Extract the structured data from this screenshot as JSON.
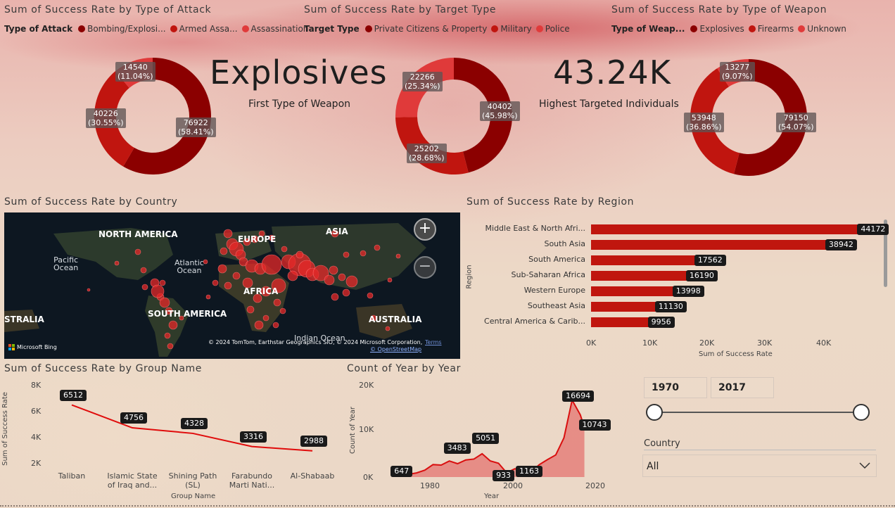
{
  "attack_panel": {
    "title": "Sum of Success Rate by Type of Attack",
    "legend_title": "Type of Attack",
    "legend": [
      {
        "label": "Bombing/Explosi...",
        "color": "#8b0000"
      },
      {
        "label": "Armed Assa...",
        "color": "#c0150f"
      },
      {
        "label": "Assassination",
        "color": "#e03a3a"
      }
    ],
    "labels": [
      "14540\n(11.04%)",
      "40226\n(30.55%)",
      "76922\n(58.41%)"
    ]
  },
  "target_panel": {
    "title": "Sum of Success Rate by Target Type",
    "legend_title": "Target Type",
    "legend": [
      {
        "label": "Private Citizens & Property",
        "color": "#8b0000"
      },
      {
        "label": "Military",
        "color": "#c0150f"
      },
      {
        "label": "Police",
        "color": "#e03a3a"
      }
    ],
    "labels": [
      "22266\n(25.34%)",
      "40402\n(45.98%)",
      "25202\n(28.68%)"
    ]
  },
  "weapon_panel": {
    "title": "Sum of Success Rate by Type of Weapon",
    "legend_title": "Type of Weap...",
    "legend": [
      {
        "label": "Explosives",
        "color": "#8b0000"
      },
      {
        "label": "Firearms",
        "color": "#c0150f"
      },
      {
        "label": "Unknown",
        "color": "#e03a3a"
      }
    ],
    "labels": [
      "13277\n(9.07%)",
      "53948\n(36.86%)",
      "79150\n(54.07%)"
    ]
  },
  "kpi_weapon": {
    "value": "Explosives",
    "caption": "First Type of Weapon"
  },
  "kpi_targeted": {
    "value": "43.24K",
    "caption": "Highest Targeted Individuals"
  },
  "country_panel": {
    "title": "Sum of Success Rate by Country",
    "continents": [
      "NORTH AMERICA",
      "EUROPE",
      "ASIA",
      "AFRICA",
      "SOUTH AMERICA",
      "AUSTRALIA",
      "STRALIA"
    ],
    "oceans": [
      "Pacific\nOcean",
      "Atlantic\nOcean",
      "Indian Ocean"
    ],
    "zoom_in": "+",
    "zoom_out": "−",
    "bing": "Microsoft Bing",
    "copyright": "© 2024 TomTom, Earthstar Geographics SIO, © 2024 Microsoft Corporation,",
    "terms": "Terms",
    "osm": "© OpenStreetMap"
  },
  "region_panel": {
    "title": "Sum of Success Rate by Region",
    "yaxis_label": "Region",
    "xaxis_label": "Sum of Success Rate",
    "ticks": [
      "0K",
      "10K",
      "20K",
      "30K",
      "40K"
    ],
    "value_tags": [
      "44172",
      "38942",
      "17562",
      "16190",
      "13998",
      "11130",
      "9956"
    ]
  },
  "group_panel": {
    "title": "Sum of Success Rate by Group Name",
    "yaxis_label": "Sum of Success Rate",
    "xaxis_label": "Group Name",
    "yticks": [
      "8K",
      "6K",
      "4K",
      "2K"
    ],
    "categories": [
      "Taliban",
      "Islamic State\nof Iraq and...",
      "Shining Path\n(SL)",
      "Farabundo\nMarti Nati...",
      "Al-Shabaab"
    ],
    "value_tags": [
      "6512",
      "4756",
      "4328",
      "3316",
      "2988"
    ]
  },
  "year_panel": {
    "title": "Count of Year by Year",
    "yaxis_label": "Count of Year",
    "xaxis_label": "Year",
    "yticks": [
      "20K",
      "10K",
      "0K"
    ],
    "xticks": [
      "1980",
      "2000",
      "2020"
    ],
    "value_tags": [
      "647",
      "3483",
      "5051",
      "933",
      "1163",
      "16694",
      "10743"
    ]
  },
  "slicer": {
    "start_year": "1970",
    "end_year": "2017",
    "country_label": "Country",
    "country_value": "All"
  },
  "chart_data": [
    {
      "type": "pie",
      "title": "Sum of Success Rate by Type of Attack",
      "categories": [
        "Bombing/Explosion",
        "Armed Assault",
        "Assassination"
      ],
      "values": [
        76922,
        40226,
        14540
      ],
      "percent": [
        58.41,
        30.55,
        11.04
      ]
    },
    {
      "type": "pie",
      "title": "Sum of Success Rate by Target Type",
      "categories": [
        "Private Citizens & Property",
        "Military",
        "Police"
      ],
      "values": [
        40402,
        25202,
        22266
      ],
      "percent": [
        45.98,
        28.68,
        25.34
      ]
    },
    {
      "type": "pie",
      "title": "Sum of Success Rate by Type of Weapon",
      "categories": [
        "Explosives",
        "Firearms",
        "Unknown"
      ],
      "values": [
        79150,
        53948,
        13277
      ],
      "percent": [
        54.07,
        36.86,
        9.07
      ]
    },
    {
      "type": "bar",
      "orientation": "horizontal",
      "title": "Sum of Success Rate by Region",
      "categories": [
        "Middle East & North Afri...",
        "South Asia",
        "South America",
        "Sub-Saharan Africa",
        "Western Europe",
        "Southeast Asia",
        "Central America & Carib..."
      ],
      "values": [
        44172,
        38942,
        17562,
        16190,
        13998,
        11130,
        9956
      ],
      "xlabel": "Sum of Success Rate",
      "ylabel": "Region",
      "xlim": [
        0,
        47000
      ]
    },
    {
      "type": "line",
      "title": "Sum of Success Rate by Group Name",
      "categories": [
        "Taliban",
        "Islamic State of Iraq and...",
        "Shining Path (SL)",
        "Farabundo Marti Nati...",
        "Al-Shabaab"
      ],
      "values": [
        6512,
        4756,
        4328,
        3316,
        2988
      ],
      "xlabel": "Group Name",
      "ylabel": "Sum of Success Rate",
      "ylim": [
        1500,
        8000
      ]
    },
    {
      "type": "area",
      "title": "Count of Year by Year",
      "x": [
        1970,
        1972,
        1974,
        1976,
        1978,
        1980,
        1982,
        1984,
        1986,
        1988,
        1990,
        1992,
        1994,
        1996,
        1998,
        2000,
        2002,
        2004,
        2006,
        2008,
        2010,
        2012,
        2014,
        2016,
        2017
      ],
      "values": [
        647,
        500,
        600,
        900,
        1500,
        2700,
        2600,
        3483,
        2900,
        3700,
        3900,
        5051,
        3500,
        3000,
        933,
        1800,
        1300,
        1163,
        2700,
        3800,
        4800,
        8500,
        16694,
        13500,
        10743
      ],
      "xlabel": "Year",
      "ylabel": "Count of Year",
      "ylim": [
        0,
        20000
      ],
      "xlim": [
        1966,
        2020
      ]
    }
  ]
}
